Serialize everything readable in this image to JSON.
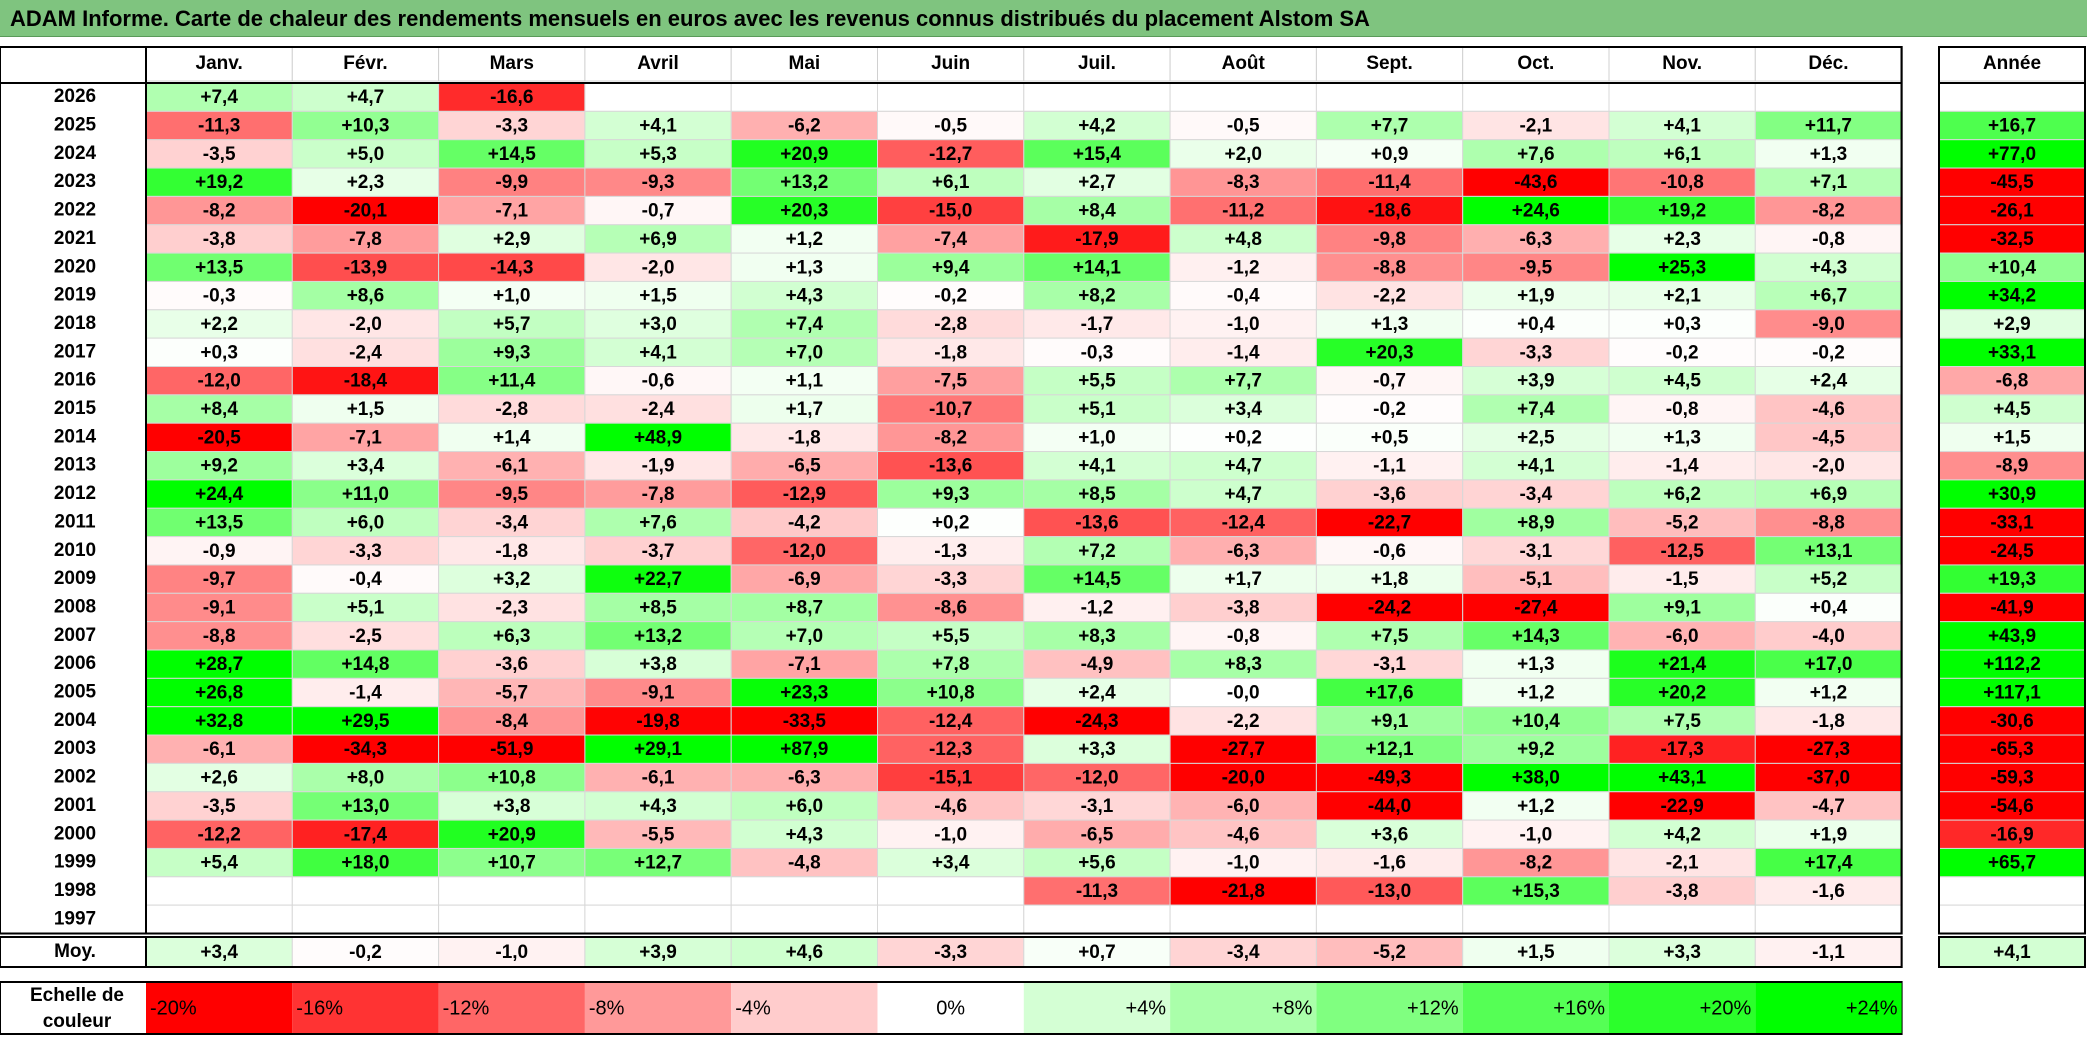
{
  "title": "ADAM Informe. Carte de chaleur des rendements mensuels en euros avec les revenus connus distribués du placement Alstom SA",
  "chart_data": {
    "type": "heatmap",
    "title": "ADAM Informe. Carte de chaleur des rendements mensuels en euros avec les revenus connus distribués du placement Alstom SA",
    "columns": [
      "Janv.",
      "Févr.",
      "Mars",
      "Avril",
      "Mai",
      "Juin",
      "Juil.",
      "Août",
      "Sept.",
      "Oct.",
      "Nov.",
      "Déc."
    ],
    "year_column_label": "Année",
    "rows": [
      {
        "year": "2026",
        "months": [
          "+7,4",
          "+4,7",
          "-16,6",
          null,
          null,
          null,
          null,
          null,
          null,
          null,
          null,
          null
        ],
        "annual": null
      },
      {
        "year": "2025",
        "months": [
          "-11,3",
          "+10,3",
          "-3,3",
          "+4,1",
          "-6,2",
          "-0,5",
          "+4,2",
          "-0,5",
          "+7,7",
          "-2,1",
          "+4,1",
          "+11,7"
        ],
        "annual": "+16,7"
      },
      {
        "year": "2024",
        "months": [
          "-3,5",
          "+5,0",
          "+14,5",
          "+5,3",
          "+20,9",
          "-12,7",
          "+15,4",
          "+2,0",
          "+0,9",
          "+7,6",
          "+6,1",
          "+1,3"
        ],
        "annual": "+77,0"
      },
      {
        "year": "2023",
        "months": [
          "+19,2",
          "+2,3",
          "-9,9",
          "-9,3",
          "+13,2",
          "+6,1",
          "+2,7",
          "-8,3",
          "-11,4",
          "-43,6",
          "-10,8",
          "+7,1"
        ],
        "annual": "-45,5"
      },
      {
        "year": "2022",
        "months": [
          "-8,2",
          "-20,1",
          "-7,1",
          "-0,7",
          "+20,3",
          "-15,0",
          "+8,4",
          "-11,2",
          "-18,6",
          "+24,6",
          "+19,2",
          "-8,2"
        ],
        "annual": "-26,1"
      },
      {
        "year": "2021",
        "months": [
          "-3,8",
          "-7,8",
          "+2,9",
          "+6,9",
          "+1,2",
          "-7,4",
          "-17,9",
          "+4,8",
          "-9,8",
          "-6,3",
          "+2,3",
          "-0,8"
        ],
        "annual": "-32,5"
      },
      {
        "year": "2020",
        "months": [
          "+13,5",
          "-13,9",
          "-14,3",
          "-2,0",
          "+1,3",
          "+9,4",
          "+14,1",
          "-1,2",
          "-8,8",
          "-9,5",
          "+25,3",
          "+4,3"
        ],
        "annual": "+10,4"
      },
      {
        "year": "2019",
        "months": [
          "-0,3",
          "+8,6",
          "+1,0",
          "+1,5",
          "+4,3",
          "-0,2",
          "+8,2",
          "-0,4",
          "-2,2",
          "+1,9",
          "+2,1",
          "+6,7"
        ],
        "annual": "+34,2"
      },
      {
        "year": "2018",
        "months": [
          "+2,2",
          "-2,0",
          "+5,7",
          "+3,0",
          "+7,4",
          "-2,8",
          "-1,7",
          "-1,0",
          "+1,3",
          "+0,4",
          "+0,3",
          "-9,0"
        ],
        "annual": "+2,9"
      },
      {
        "year": "2017",
        "months": [
          "+0,3",
          "-2,4",
          "+9,3",
          "+4,1",
          "+7,0",
          "-1,8",
          "-0,3",
          "-1,4",
          "+20,3",
          "-3,3",
          "-0,2",
          "-0,2"
        ],
        "annual": "+33,1"
      },
      {
        "year": "2016",
        "months": [
          "-12,0",
          "-18,4",
          "+11,4",
          "-0,6",
          "+1,1",
          "-7,5",
          "+5,5",
          "+7,7",
          "-0,7",
          "+3,9",
          "+4,5",
          "+2,4"
        ],
        "annual": "-6,8"
      },
      {
        "year": "2015",
        "months": [
          "+8,4",
          "+1,5",
          "-2,8",
          "-2,4",
          "+1,7",
          "-10,7",
          "+5,1",
          "+3,4",
          "-0,2",
          "+7,4",
          "-0,8",
          "-4,6"
        ],
        "annual": "+4,5"
      },
      {
        "year": "2014",
        "months": [
          "-20,5",
          "-7,1",
          "+1,4",
          "+48,9",
          "-1,8",
          "-8,2",
          "+1,0",
          "+0,2",
          "+0,5",
          "+2,5",
          "+1,3",
          "-4,5"
        ],
        "annual": "+1,5"
      },
      {
        "year": "2013",
        "months": [
          "+9,2",
          "+3,4",
          "-6,1",
          "-1,9",
          "-6,5",
          "-13,6",
          "+4,1",
          "+4,7",
          "-1,1",
          "+4,1",
          "-1,4",
          "-2,0"
        ],
        "annual": "-8,9"
      },
      {
        "year": "2012",
        "months": [
          "+24,4",
          "+11,0",
          "-9,5",
          "-7,8",
          "-12,9",
          "+9,3",
          "+8,5",
          "+4,7",
          "-3,6",
          "-3,4",
          "+6,2",
          "+6,9"
        ],
        "annual": "+30,9"
      },
      {
        "year": "2011",
        "months": [
          "+13,5",
          "+6,0",
          "-3,4",
          "+7,6",
          "-4,2",
          "+0,2",
          "-13,6",
          "-12,4",
          "-22,7",
          "+8,9",
          "-5,2",
          "-8,8"
        ],
        "annual": "-33,1"
      },
      {
        "year": "2010",
        "months": [
          "-0,9",
          "-3,3",
          "-1,8",
          "-3,7",
          "-12,0",
          "-1,3",
          "+7,2",
          "-6,3",
          "-0,6",
          "-3,1",
          "-12,5",
          "+13,1"
        ],
        "annual": "-24,5"
      },
      {
        "year": "2009",
        "months": [
          "-9,7",
          "-0,4",
          "+3,2",
          "+22,7",
          "-6,9",
          "-3,3",
          "+14,5",
          "+1,7",
          "+1,8",
          "-5,1",
          "-1,5",
          "+5,2"
        ],
        "annual": "+19,3"
      },
      {
        "year": "2008",
        "months": [
          "-9,1",
          "+5,1",
          "-2,3",
          "+8,5",
          "+8,7",
          "-8,6",
          "-1,2",
          "-3,8",
          "-24,2",
          "-27,4",
          "+9,1",
          "+0,4"
        ],
        "annual": "-41,9"
      },
      {
        "year": "2007",
        "months": [
          "-8,8",
          "-2,5",
          "+6,3",
          "+13,2",
          "+7,0",
          "+5,5",
          "+8,3",
          "-0,8",
          "+7,5",
          "+14,3",
          "-6,0",
          "-4,0"
        ],
        "annual": "+43,9"
      },
      {
        "year": "2006",
        "months": [
          "+28,7",
          "+14,8",
          "-3,6",
          "+3,8",
          "-7,1",
          "+7,8",
          "-4,9",
          "+8,3",
          "-3,1",
          "+1,3",
          "+21,4",
          "+17,0"
        ],
        "annual": "+112,2"
      },
      {
        "year": "2005",
        "months": [
          "+26,8",
          "-1,4",
          "-5,7",
          "-9,1",
          "+23,3",
          "+10,8",
          "+2,4",
          "-0,0",
          "+17,6",
          "+1,2",
          "+20,2",
          "+1,2"
        ],
        "annual": "+117,1"
      },
      {
        "year": "2004",
        "months": [
          "+32,8",
          "+29,5",
          "-8,4",
          "-19,8",
          "-33,5",
          "-12,4",
          "-24,3",
          "-2,2",
          "+9,1",
          "+10,4",
          "+7,5",
          "-1,8"
        ],
        "annual": "-30,6"
      },
      {
        "year": "2003",
        "months": [
          "-6,1",
          "-34,3",
          "-51,9",
          "+29,1",
          "+87,9",
          "-12,3",
          "+3,3",
          "-27,7",
          "+12,1",
          "+9,2",
          "-17,3",
          "-27,3"
        ],
        "annual": "-65,3"
      },
      {
        "year": "2002",
        "months": [
          "+2,6",
          "+8,0",
          "+10,8",
          "-6,1",
          "-6,3",
          "-15,1",
          "-12,0",
          "-20,0",
          "-49,3",
          "+38,0",
          "+43,1",
          "-37,0"
        ],
        "annual": "-59,3"
      },
      {
        "year": "2001",
        "months": [
          "-3,5",
          "+13,0",
          "+3,8",
          "+4,3",
          "+6,0",
          "-4,6",
          "-3,1",
          "-6,0",
          "-44,0",
          "+1,2",
          "-22,9",
          "-4,7"
        ],
        "annual": "-54,6"
      },
      {
        "year": "2000",
        "months": [
          "-12,2",
          "-17,4",
          "+20,9",
          "-5,5",
          "+4,3",
          "-1,0",
          "-6,5",
          "-4,6",
          "+3,6",
          "-1,0",
          "+4,2",
          "+1,9"
        ],
        "annual": "-16,9"
      },
      {
        "year": "1999",
        "months": [
          "+5,4",
          "+18,0",
          "+10,7",
          "+12,7",
          "-4,8",
          "+3,4",
          "+5,6",
          "-1,0",
          "-1,6",
          "-8,2",
          "-2,1",
          "+17,4"
        ],
        "annual": "+65,7"
      },
      {
        "year": "1998",
        "months": [
          null,
          null,
          null,
          null,
          null,
          null,
          "-11,3",
          "-21,8",
          "-13,0",
          "+15,3",
          "-3,8",
          "-1,6"
        ],
        "annual": null
      },
      {
        "year": "1997",
        "months": [
          null,
          null,
          null,
          null,
          null,
          null,
          null,
          null,
          null,
          null,
          null,
          null
        ],
        "annual": null
      }
    ],
    "average": {
      "label": "Moy.",
      "months": [
        "+3,4",
        "-0,2",
        "-1,0",
        "+3,9",
        "+4,6",
        "-3,3",
        "+0,7",
        "-3,4",
        "-5,2",
        "+1,5",
        "+3,3",
        "-1,1"
      ],
      "annual": "+4,1"
    },
    "scale": {
      "label_line1": "Echelle de",
      "label_line2": "couleur",
      "stops": [
        {
          "label": "-20%",
          "value": -20,
          "color": "#ff0000"
        },
        {
          "label": "-16%",
          "value": -16,
          "color": "#ff3333"
        },
        {
          "label": "-12%",
          "value": -12,
          "color": "#ff6666"
        },
        {
          "label": "-8%",
          "value": -8,
          "color": "#ff9999"
        },
        {
          "label": "-4%",
          "value": -4,
          "color": "#ffcccc"
        },
        {
          "label": "0%",
          "value": 0,
          "color": "#ffffff"
        },
        {
          "label": "+4%",
          "value": 4,
          "color": "#d4ffd4"
        },
        {
          "label": "+8%",
          "value": 8,
          "color": "#aaffaa"
        },
        {
          "label": "+12%",
          "value": 12,
          "color": "#80ff80"
        },
        {
          "label": "+16%",
          "value": 16,
          "color": "#55ff55"
        },
        {
          "label": "+20%",
          "value": 20,
          "color": "#2bff2b"
        },
        {
          "label": "+24%",
          "value": 24,
          "color": "#00ff00"
        }
      ]
    },
    "colors": {
      "title_bar": "#7fc47f",
      "negative_max": "#ff0000",
      "positive_max": "#00ff00",
      "neutral": "#ffffff"
    }
  }
}
